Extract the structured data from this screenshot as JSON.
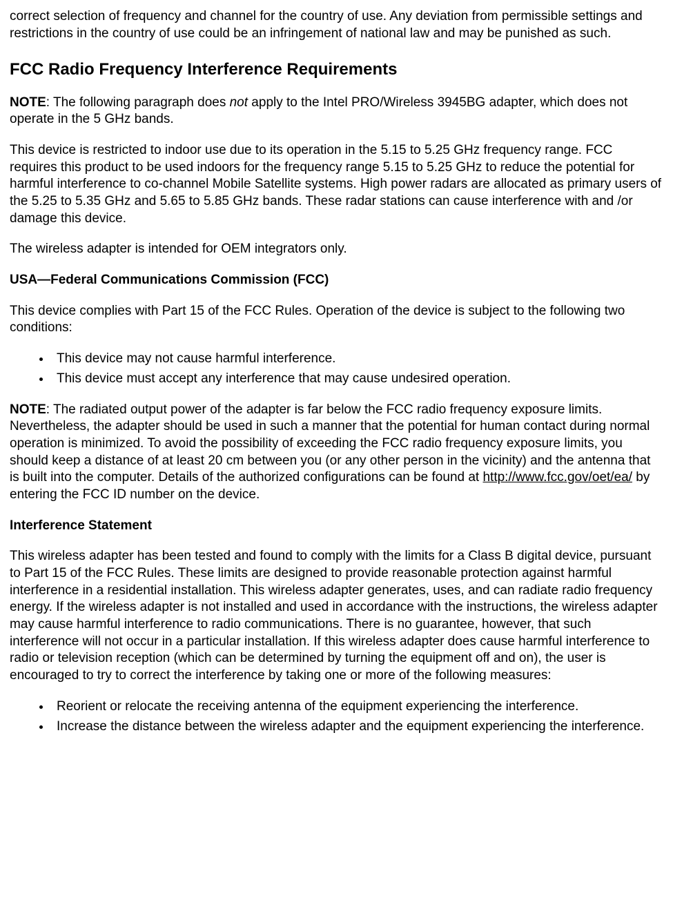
{
  "intro_para": "correct selection of frequency and channel for the country of use. Any deviation from permissible settings and restrictions in the country of use could be an infringement of national law and may be punished as such.",
  "h2_fcc": "FCC Radio Frequency Interference Requirements",
  "note1_label": "NOTE",
  "note1_sep": ": The following paragraph does ",
  "note1_italic": "not",
  "note1_rest": " apply to the Intel PRO/Wireless 3945BG adapter, which does not operate in the 5 GHz bands.",
  "para_indoor": "This device is restricted to indoor use due to its operation in the 5.15 to 5.25 GHz frequency range. FCC requires this product to be used indoors for the frequency range 5.15 to 5.25 GHz to reduce the potential for harmful interference to co-channel Mobile Satellite systems. High power radars are allocated as primary users of the 5.25 to 5.35 GHz and 5.65 to 5.85 GHz bands. These radar stations can cause interference with and /or damage this device.",
  "para_oem": "The wireless adapter is intended for OEM integrators only.",
  "h3_usa": "USA—Federal Communications Commission (FCC)",
  "para_part15": "This device complies with Part 15 of the FCC Rules. Operation of the device is subject to the following two conditions:",
  "bullets1": [
    "This device may not cause harmful interference.",
    "This device must accept any interference that may cause undesired operation."
  ],
  "note2_label": "NOTE",
  "note2_sep": ": The radiated output power of the adapter is far below the FCC radio frequency exposure limits. Nevertheless, the adapter should be used in such a manner that the potential for human contact during normal operation is minimized. To avoid the possibility of exceeding the FCC radio frequency exposure limits, you should keep a distance of at least 20 cm between you (or any other person in the vicinity) and the antenna that is built into the computer. Details of the authorized configurations can be found at ",
  "note2_link": "http://www.fcc.gov/oet/ea/",
  "note2_rest": " by entering the FCC ID number on the device.",
  "h3_interference": "Interference Statement",
  "para_interference": "This wireless adapter has been tested and found to comply with the limits for a Class B digital device, pursuant to Part 15 of the FCC Rules. These limits are designed to provide reasonable protection against harmful interference in a residential installation. This wireless adapter generates, uses, and can radiate radio frequency energy. If the wireless adapter is not installed and used in accordance with the instructions, the wireless adapter may cause harmful interference to radio communications. There is no guarantee, however, that such interference will not occur in a particular installation. If this wireless adapter does cause harmful interference to radio or television reception (which can be determined by turning the equipment off and on), the user is encouraged to try to correct the interference by taking one or more of the following measures:",
  "bullets2": [
    "Reorient or relocate the receiving antenna of the equipment experiencing the interference.",
    "Increase the distance between the wireless adapter and the equipment experiencing the interference."
  ]
}
